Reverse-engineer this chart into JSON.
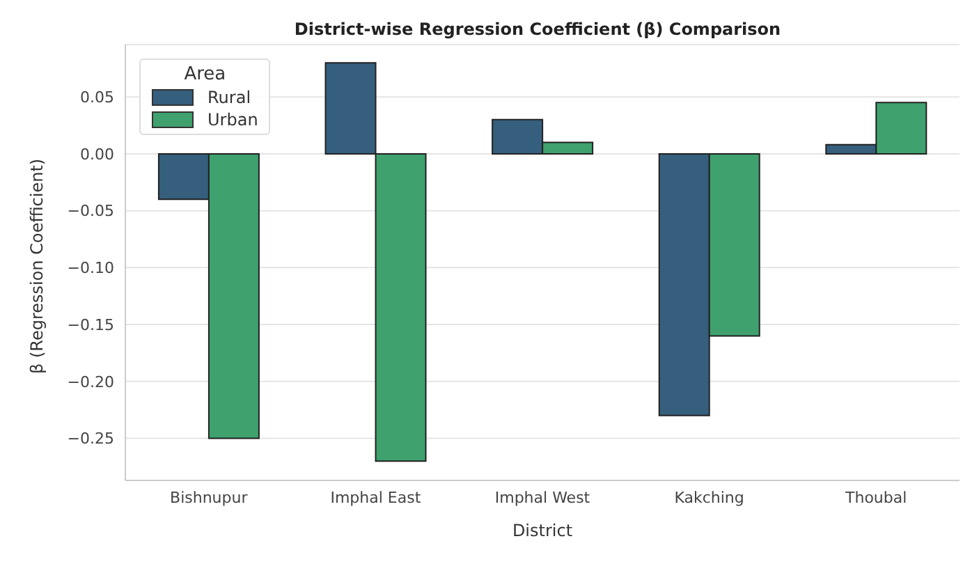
{
  "chart_data": {
    "type": "bar",
    "title": "District-wise Regression Coefficient (β) Comparison",
    "xlabel": "District",
    "ylabel": "β (Regression Coefficient)",
    "legend_title": "Area",
    "categories": [
      "Bishnupur",
      "Imphal East",
      "Imphal West",
      "Kakching",
      "Thoubal"
    ],
    "series": [
      {
        "name": "Rural",
        "color": "#355f7d",
        "values": [
          -0.04,
          0.08,
          0.03,
          -0.23,
          0.008
        ]
      },
      {
        "name": "Urban",
        "color": "#3fa16e",
        "values": [
          -0.25,
          -0.27,
          0.01,
          -0.16,
          0.045
        ]
      }
    ],
    "ylim": [
      -0.287,
      0.096
    ],
    "yticks": [
      {
        "value": -0.25,
        "label": "−0.25"
      },
      {
        "value": -0.2,
        "label": "−0.20"
      },
      {
        "value": -0.15,
        "label": "−0.15"
      },
      {
        "value": -0.1,
        "label": "−0.10"
      },
      {
        "value": -0.05,
        "label": "−0.05"
      },
      {
        "value": 0,
        "label": "0.00"
      },
      {
        "value": 0.05,
        "label": "0.05"
      }
    ],
    "grid": "y",
    "legend": "top left"
  }
}
